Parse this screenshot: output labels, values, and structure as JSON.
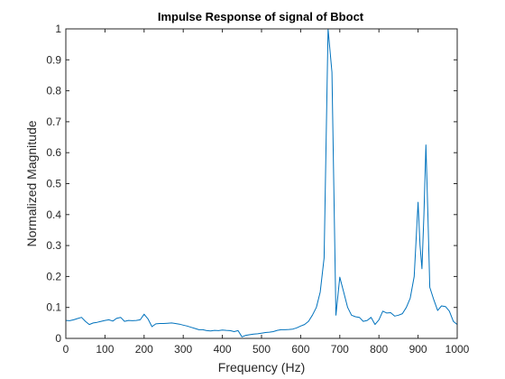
{
  "chart_data": {
    "type": "line",
    "title": "Impulse Response of signal of Bboct",
    "xlabel": "Frequency (Hz)",
    "ylabel": "Normalized Magnitude",
    "xlim": [
      0,
      1000
    ],
    "ylim": [
      0,
      1
    ],
    "xticks": [
      0,
      100,
      200,
      300,
      400,
      500,
      600,
      700,
      800,
      900,
      1000
    ],
    "xtick_labels": [
      "0",
      "100",
      "200",
      "300",
      "400",
      "500",
      "600",
      "700",
      "800",
      "900",
      "1000"
    ],
    "yticks": [
      0,
      0.1,
      0.2,
      0.3,
      0.4,
      0.5,
      0.6,
      0.7,
      0.8,
      0.9,
      1
    ],
    "ytick_labels": [
      "0",
      "0.1",
      "0.2",
      "0.3",
      "0.4",
      "0.5",
      "0.6",
      "0.7",
      "0.8",
      "0.9",
      "1"
    ],
    "grid": false,
    "series": [
      {
        "name": "Bboct",
        "color": "#0072bd",
        "x": [
          0,
          10,
          20,
          30,
          40,
          50,
          60,
          70,
          80,
          90,
          100,
          110,
          120,
          130,
          140,
          150,
          160,
          170,
          180,
          190,
          200,
          210,
          220,
          230,
          240,
          250,
          260,
          270,
          280,
          290,
          300,
          310,
          320,
          330,
          340,
          350,
          360,
          370,
          380,
          390,
          400,
          410,
          420,
          430,
          440,
          450,
          460,
          470,
          480,
          490,
          500,
          510,
          520,
          530,
          540,
          550,
          560,
          570,
          580,
          590,
          600,
          610,
          620,
          630,
          640,
          650,
          660,
          670,
          680,
          690,
          700,
          710,
          720,
          730,
          740,
          750,
          760,
          770,
          780,
          790,
          800,
          810,
          820,
          830,
          840,
          850,
          860,
          870,
          880,
          890,
          900,
          905,
          910,
          915,
          920,
          925,
          930,
          940,
          950,
          960,
          970,
          980,
          990,
          1000
        ],
        "y": [
          0.058,
          0.057,
          0.06,
          0.064,
          0.068,
          0.055,
          0.045,
          0.05,
          0.052,
          0.055,
          0.058,
          0.06,
          0.056,
          0.065,
          0.068,
          0.055,
          0.058,
          0.057,
          0.058,
          0.06,
          0.078,
          0.063,
          0.038,
          0.047,
          0.048,
          0.048,
          0.049,
          0.05,
          0.048,
          0.046,
          0.043,
          0.04,
          0.036,
          0.032,
          0.028,
          0.028,
          0.025,
          0.024,
          0.026,
          0.025,
          0.027,
          0.026,
          0.025,
          0.022,
          0.025,
          0.005,
          0.01,
          0.012,
          0.014,
          0.015,
          0.017,
          0.019,
          0.02,
          0.022,
          0.026,
          0.028,
          0.028,
          0.029,
          0.03,
          0.034,
          0.04,
          0.045,
          0.055,
          0.075,
          0.1,
          0.15,
          0.26,
          1.0,
          0.86,
          0.075,
          0.198,
          0.15,
          0.1,
          0.075,
          0.07,
          0.068,
          0.055,
          0.058,
          0.068,
          0.045,
          0.06,
          0.088,
          0.082,
          0.083,
          0.072,
          0.075,
          0.08,
          0.1,
          0.13,
          0.2,
          0.44,
          0.3,
          0.225,
          0.4,
          0.625,
          0.4,
          0.165,
          0.125,
          0.09,
          0.105,
          0.103,
          0.088,
          0.055,
          0.045
        ]
      }
    ]
  }
}
